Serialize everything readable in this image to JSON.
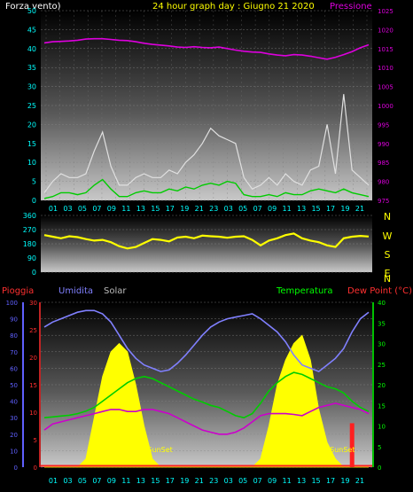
{
  "header": {
    "left_label": "Forza vento)",
    "title": "24 hour graph day : Giugno 21 2020",
    "right_label": "Pressione"
  },
  "colors": {
    "wind": "#ffffff",
    "gust": "#e0e0e0",
    "wind_avg": "#00cc00",
    "pressure": "#dd00dd",
    "direction": "#ffff00",
    "rain": "#ff2020",
    "humidity": "#8080ff",
    "solar": "#ffff00",
    "temperature": "#00cc00",
    "dewpoint": "#cc00cc",
    "tick_cyan": "#00ffff",
    "tick_magenta": "#dd00dd",
    "tick_rain": "#ff3030",
    "tick_hum": "#6060ff",
    "tick_temp": "#00ff00",
    "title_yellow": "#ffff00",
    "label_gray": "#bbbbbb"
  },
  "chart_data": [
    {
      "type": "line",
      "title": "24 hour graph day : Giugno 21 2020",
      "x_tick_labels": [
        "01",
        "03",
        "05",
        "07",
        "09",
        "11",
        "13",
        "15",
        "17",
        "19",
        "21",
        "23",
        "03",
        "05",
        "07",
        "09",
        "11",
        "13",
        "15",
        "17",
        "19",
        "21"
      ],
      "y_left": {
        "label": "Forza vento)",
        "range": [
          0,
          50
        ],
        "ticks": [
          "0",
          "5",
          "10",
          "15",
          "20",
          "25",
          "30",
          "35",
          "40",
          "45",
          "50"
        ]
      },
      "y_right": {
        "label": "Pressione",
        "range": [
          975,
          1025
        ],
        "ticks": [
          "975",
          "980",
          "985",
          "990",
          "995",
          "1000",
          "1005",
          "1010",
          "1015",
          "1020",
          "1025"
        ]
      },
      "series": [
        {
          "key": "pressure",
          "axis": "right",
          "values": [
            1016.5,
            1016.8,
            1016.9,
            1017.0,
            1017.2,
            1017.5,
            1017.6,
            1017.6,
            1017.4,
            1017.2,
            1017.1,
            1016.8,
            1016.4,
            1016.1,
            1015.9,
            1015.7,
            1015.4,
            1015.3,
            1015.5,
            1015.3,
            1015.2,
            1015.4,
            1015.0,
            1014.6,
            1014.3,
            1014.1,
            1014.0,
            1013.6,
            1013.3,
            1013.1,
            1013.4,
            1013.3,
            1013.0,
            1012.6,
            1012.2,
            1012.7,
            1013.4,
            1014.2,
            1015.2,
            1016.0
          ]
        },
        {
          "key": "wind_avg",
          "axis": "left",
          "values": [
            0.5,
            1,
            2,
            2,
            1.5,
            2,
            4,
            5.5,
            3,
            1,
            1,
            2,
            2.5,
            2,
            2,
            3,
            2.5,
            3.5,
            3,
            4,
            4.5,
            4,
            5,
            4.5,
            1.5,
            1,
            1,
            1.5,
            1,
            2,
            1.5,
            1.5,
            2.5,
            3,
            2.5,
            2,
            3,
            2,
            1.5,
            1
          ]
        },
        {
          "key": "wind_gust",
          "axis": "left",
          "values": [
            2,
            5,
            7,
            6,
            6,
            7,
            13,
            18,
            9,
            4,
            4,
            6,
            7,
            6,
            6,
            8,
            7,
            10,
            12,
            15,
            19,
            17,
            16,
            15,
            6,
            3,
            4,
            6,
            4,
            7,
            5,
            4,
            8,
            9,
            20,
            7,
            28,
            8,
            6,
            4
          ]
        }
      ]
    },
    {
      "type": "scatter",
      "x_tick_labels": [],
      "y_left": {
        "range": [
          0,
          360
        ],
        "ticks": [
          "0",
          "90",
          "180",
          "270",
          "360"
        ]
      },
      "y_right_labels": [
        "N",
        "W",
        "S",
        "E",
        "N"
      ],
      "series": [
        {
          "key": "direction",
          "values": [
            235,
            225,
            215,
            228,
            222,
            210,
            200,
            205,
            190,
            165,
            150,
            160,
            185,
            210,
            205,
            195,
            220,
            225,
            215,
            232,
            228,
            225,
            218,
            225,
            228,
            205,
            170,
            200,
            215,
            235,
            245,
            215,
            200,
            190,
            170,
            160,
            215,
            225,
            230,
            226
          ]
        }
      ]
    },
    {
      "type": "area",
      "x_tick_labels": [
        "01",
        "03",
        "05",
        "07",
        "09",
        "11",
        "13",
        "15",
        "17",
        "19",
        "21",
        "23",
        "03",
        "05",
        "07",
        "09",
        "11",
        "13",
        "15",
        "17",
        "19",
        "21"
      ],
      "legend": {
        "rain": "Pioggia",
        "humidity": "Umidita",
        "solar": "Solar",
        "temperature": "Temperatura",
        "dewpoint": "Dew Point (°C)"
      },
      "axis_hum": {
        "range": [
          0,
          100
        ],
        "ticks": [
          "0",
          "10",
          "20",
          "30",
          "40",
          "50",
          "60",
          "70",
          "80",
          "90",
          "100"
        ]
      },
      "axis_rain": {
        "range": [
          0,
          30
        ],
        "ticks": [
          "0",
          "5",
          "10",
          "15",
          "20",
          "25",
          "30"
        ]
      },
      "axis_temp": {
        "range": [
          0,
          40
        ],
        "ticks": [
          "0",
          "5",
          "10",
          "15",
          "20",
          "25",
          "30",
          "35",
          "40"
        ]
      },
      "annotations": [
        {
          "text": "SunSet",
          "x": 0.36
        },
        {
          "text": "SunSet",
          "x": 0.91
        }
      ],
      "series": [
        {
          "key": "humidity",
          "axis": "hum",
          "values": [
            85,
            88,
            90,
            92,
            94,
            95,
            95,
            93,
            88,
            80,
            72,
            66,
            62,
            60,
            58,
            59,
            63,
            68,
            74,
            80,
            85,
            88,
            90,
            91,
            92,
            93,
            90,
            86,
            82,
            76,
            68,
            62,
            60,
            58,
            62,
            66,
            72,
            82,
            90,
            94
          ]
        },
        {
          "key": "temperature",
          "axis": "temp",
          "values": [
            12.0,
            12.2,
            12.4,
            12.6,
            13.0,
            13.6,
            14.5,
            16.0,
            17.5,
            19.0,
            20.5,
            21.5,
            22.0,
            21.5,
            20.5,
            19.5,
            18.5,
            17.5,
            16.5,
            15.8,
            15.0,
            14.5,
            13.5,
            12.5,
            12.0,
            13.0,
            15.5,
            18.5,
            20.5,
            22.0,
            23.0,
            22.5,
            21.5,
            20.5,
            19.5,
            19.0,
            18.0,
            16.0,
            14.5,
            13.5
          ]
        },
        {
          "key": "dewpoint",
          "axis": "temp",
          "values": [
            9.0,
            10.5,
            11.0,
            11.5,
            12.0,
            12.5,
            13.0,
            13.5,
            14.0,
            14.0,
            13.5,
            13.5,
            14.0,
            14.0,
            13.5,
            13.0,
            12.0,
            11.0,
            10.0,
            9.0,
            8.5,
            8.0,
            8.0,
            8.5,
            9.5,
            11.0,
            12.5,
            13.0,
            13.0,
            13.0,
            12.8,
            12.5,
            13.5,
            14.5,
            15.0,
            15.5,
            15.0,
            14.5,
            14.0,
            13.0
          ]
        },
        {
          "key": "solar",
          "axis": "temp",
          "values": [
            0,
            0,
            0,
            0,
            0,
            2,
            12,
            22,
            28,
            30,
            28,
            20,
            10,
            2,
            0,
            0,
            0,
            0,
            0,
            0,
            0,
            0,
            0,
            0,
            0,
            0,
            2,
            10,
            20,
            26,
            30,
            32,
            26,
            14,
            6,
            2,
            0,
            0,
            0,
            0
          ]
        },
        {
          "key": "rain",
          "axis": "rain",
          "values": [
            0,
            0,
            0,
            0,
            0,
            0,
            0,
            0,
            0,
            0,
            0,
            0,
            0,
            0,
            0,
            0,
            0,
            0,
            0,
            0,
            0,
            0,
            0,
            0,
            0,
            0,
            0,
            0,
            0,
            0,
            0,
            0,
            0,
            0,
            0,
            0,
            0,
            8,
            0,
            0
          ]
        }
      ]
    }
  ]
}
